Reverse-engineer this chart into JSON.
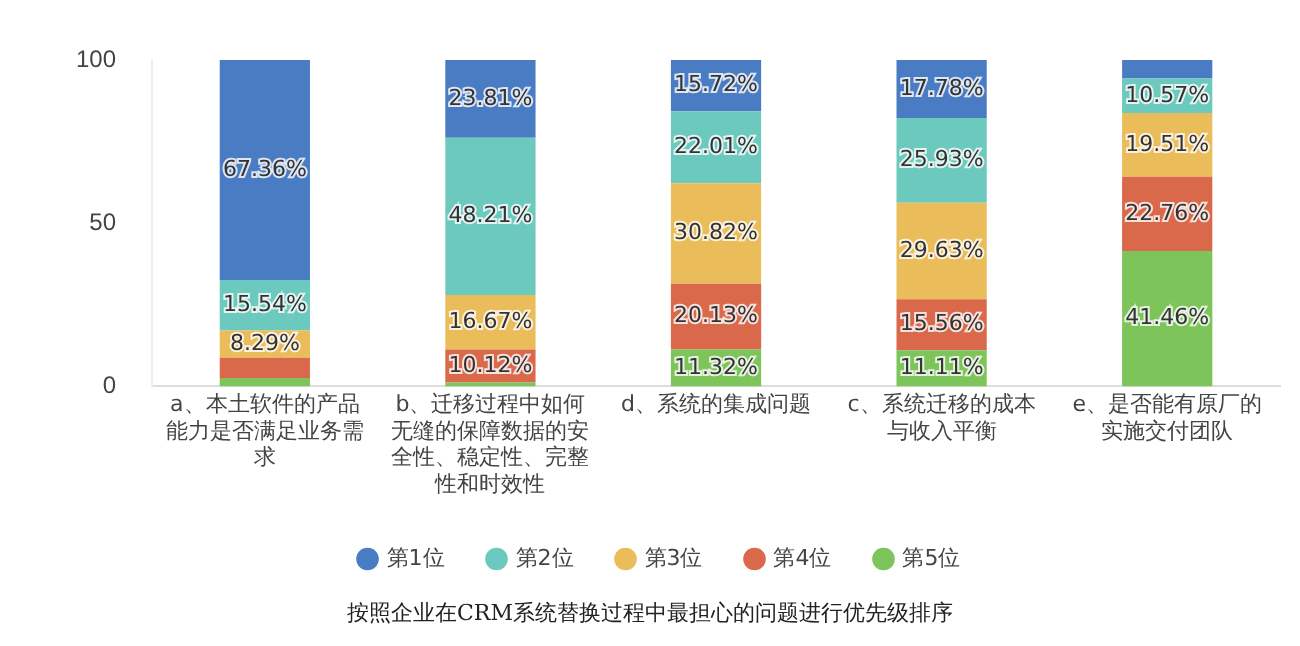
{
  "chart_data": {
    "type": "bar",
    "stacked": true,
    "categories": [
      "a、本土软件的产品能力是否满足业务需求",
      "b、迁移过程中如何无缝的保障数据的安全性、稳定性、完整性和时效性",
      "d、系统的集成问题",
      "c、系统迁移的成本与收入平衡",
      "e、是否能有原厂的实施交付团队"
    ],
    "series": [
      {
        "name": "第5位",
        "color": "#7dc45a",
        "values": [
          2.6,
          1.2,
          11.32,
          11.11,
          41.46
        ],
        "value_labels": [
          null,
          null,
          "11.32%",
          "11.11%",
          "41.46%"
        ]
      },
      {
        "name": "第4位",
        "color": "#d9694a",
        "values": [
          6.2,
          10.12,
          20.13,
          15.56,
          22.76
        ],
        "value_labels": [
          null,
          "10.12%",
          "20.13%",
          "15.56%",
          "22.76%"
        ]
      },
      {
        "name": "第3位",
        "color": "#eabc5a",
        "values": [
          8.29,
          16.67,
          30.82,
          29.63,
          19.51
        ],
        "value_labels": [
          "8.29%",
          "16.67%",
          "30.82%",
          "29.63%",
          "19.51%"
        ]
      },
      {
        "name": "第2位",
        "color": "#6cc9bd",
        "values": [
          15.54,
          48.21,
          22.01,
          25.93,
          10.57
        ],
        "value_labels": [
          "15.54%",
          "48.21%",
          "22.01%",
          "25.93%",
          "10.57%"
        ]
      },
      {
        "name": "第1位",
        "color": "#4a7cc4",
        "values": [
          67.36,
          23.81,
          15.72,
          17.78,
          5.7
        ],
        "value_labels": [
          "67.36%",
          "23.81%",
          "15.72%",
          "17.78%",
          null
        ]
      }
    ],
    "ylim": [
      0,
      100
    ],
    "yticks": [
      0,
      50,
      100
    ],
    "grid": false,
    "legend": "bottom",
    "annotations": [
      "按照企业在CRM系统替换过程中最担心的问题进行优先级排序"
    ]
  }
}
